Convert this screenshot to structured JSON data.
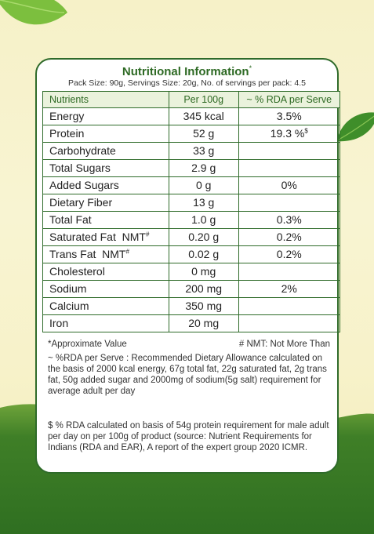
{
  "card": {
    "title": "Nutritional Information",
    "title_mark": "*",
    "subtitle": "Pack Size: 90g, Servings Size: 20g, No. of servings per pack: 4.5"
  },
  "table": {
    "headers": [
      "Nutrients",
      "Per 100g",
      "~ % RDA per Serve"
    ],
    "rows": [
      {
        "nutrient": "Energy",
        "per100g": "345 kcal",
        "rda": "3.5%"
      },
      {
        "nutrient": "Protein",
        "per100g": "52 g",
        "rda": "19.3 %",
        "rda_mark": "$"
      },
      {
        "nutrient": "Carbohydrate",
        "per100g": "33 g",
        "rda": ""
      },
      {
        "nutrient": "Total Sugars",
        "per100g": "2.9 g",
        "rda": ""
      },
      {
        "nutrient": "Added Sugars",
        "per100g": "0 g",
        "rda": "0%"
      },
      {
        "nutrient": "Dietary Fiber",
        "per100g": "13 g",
        "rda": ""
      },
      {
        "nutrient": "Total Fat",
        "per100g": "1.0 g",
        "rda": "0.3%"
      },
      {
        "nutrient": "Saturated Fat  NMT",
        "nutrient_mark": "#",
        "per100g": "0.20 g",
        "rda": "0.2%"
      },
      {
        "nutrient": "Trans Fat  NMT",
        "nutrient_mark": "#",
        "per100g": "0.02 g",
        "rda": "0.2%"
      },
      {
        "nutrient": "Cholesterol",
        "per100g": "0 mg",
        "rda": ""
      },
      {
        "nutrient": "Sodium",
        "per100g": "200 mg",
        "rda": "2%"
      },
      {
        "nutrient": "Calcium",
        "per100g": "350 mg",
        "rda": ""
      },
      {
        "nutrient": "Iron",
        "per100g": "20 mg",
        "rda": ""
      }
    ]
  },
  "footnotes": {
    "approx": "*Approximate Value",
    "nmt": "# NMT: Not More Than",
    "rda_definition": "~ %RDA per Serve : Recommended Dietary Allowance calculated on the basis of 2000 kcal energy, 67g total fat, 22g saturated fat, 2g trans fat, 50g added sugar and 2000mg of sodium(5g salt) requirement for average adult per day",
    "rda_protein": "$ % RDA calculated on basis of 54g protein requirement for male adult per day on per 100g of product (source: Nutrient Requirements for Indians (RDA and EAR), A report of the expert group 2020 ICMR."
  },
  "colors": {
    "border_green": "#2f6b2a",
    "title_green": "#2e6a24",
    "header_fill": "#eaf2dc",
    "background_cream": "#f6f1c8",
    "hill_green": "#2f6f21"
  },
  "icons": [
    "leaf-icon-top",
    "leaf-icon-right"
  ]
}
